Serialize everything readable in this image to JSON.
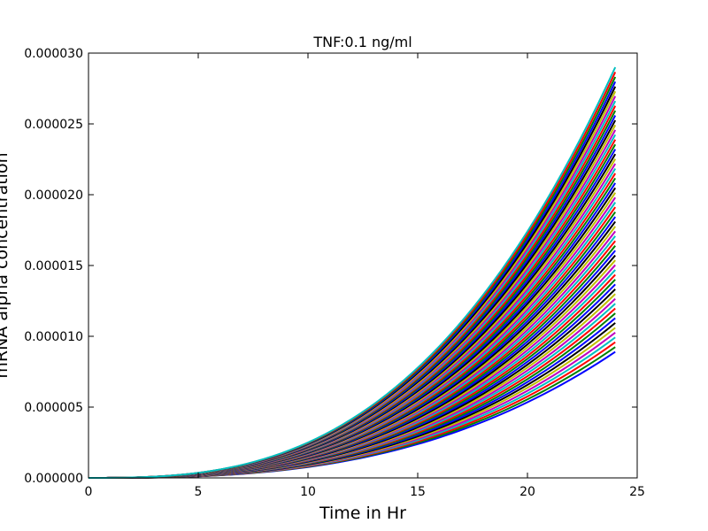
{
  "chart_data": {
    "type": "line",
    "title": "TNF:0.1 ng/ml",
    "xlabel": "Time in Hr",
    "ylabel": "mRNA alpha concentration",
    "xlim": [
      0,
      25
    ],
    "ylim": [
      0,
      3e-05
    ],
    "xticks": [
      "0",
      "5",
      "10",
      "15",
      "20",
      "25"
    ],
    "yticks": [
      "0.000000",
      "0.000005",
      "0.000010",
      "0.000015",
      "0.000020",
      "0.000025",
      "0.000030"
    ],
    "grid": false,
    "legend": "none",
    "x_range": [
      0,
      24
    ],
    "curve_shape": "power-law rise",
    "curve_exponent": 2.8,
    "series_count": 60,
    "final_values_range": [
      8.9e-06,
      2.9e-05
    ],
    "series_colors": [
      "#0000ff",
      "#008000",
      "#ff0000",
      "#00bfbf",
      "#bf00bf",
      "#bfbf00",
      "#000000"
    ]
  }
}
